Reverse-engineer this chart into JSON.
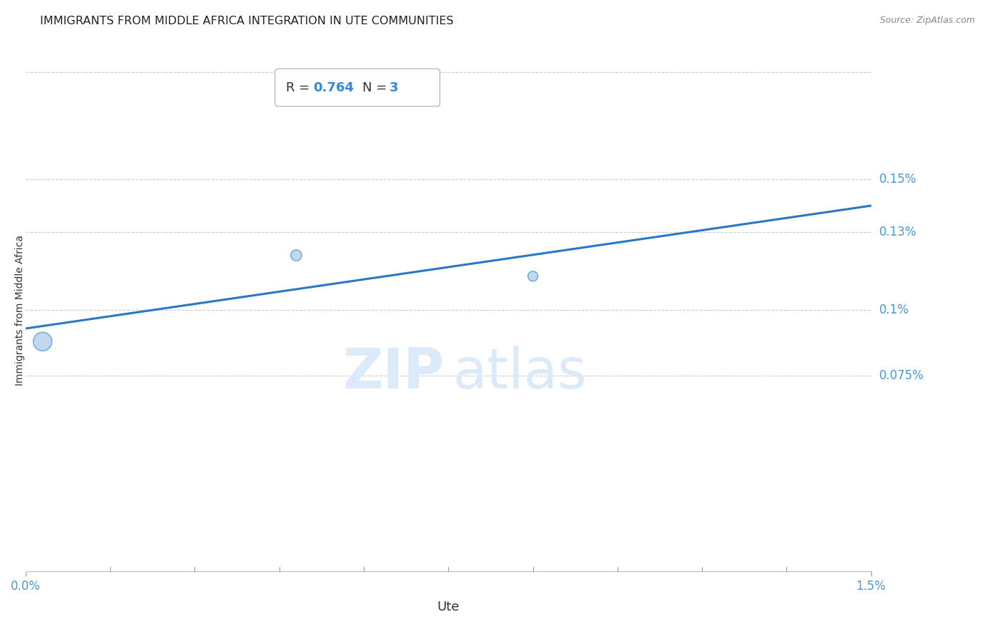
{
  "title": "IMMIGRANTS FROM MIDDLE AFRICA INTEGRATION IN UTE COMMUNITIES",
  "source": "Source: ZipAtlas.com",
  "xlabel": "Ute",
  "ylabel": "Immigrants from Middle Africa",
  "x_min": 0.0,
  "x_max": 0.015,
  "y_min": 0.0,
  "y_max": 0.002,
  "x_tick_labels": [
    "0.0%",
    "1.5%"
  ],
  "y_tick_labels": [
    "0.075%",
    "0.1%",
    "0.13%",
    "0.15%"
  ],
  "y_tick_values": [
    0.00075,
    0.001,
    0.0013,
    0.0015
  ],
  "scatter_x": [
    0.0003,
    0.0048,
    0.009
  ],
  "scatter_y": [
    0.00088,
    0.00121,
    0.00113
  ],
  "scatter_sizes": [
    350,
    120,
    100
  ],
  "scatter_color": "#c0d8f0",
  "scatter_edgecolor": "#7ab0d8",
  "regression_x_start": 0.0,
  "regression_x_end": 0.015,
  "regression_y_start": 0.00093,
  "regression_y_end": 0.0014,
  "regression_color": "#2878c8",
  "regression_linewidth": 2.2,
  "R_value": "0.764",
  "N_value": "3",
  "zip_color": "#daeaf8",
  "atlas_color": "#daeaf8",
  "background_color": "#ffffff",
  "grid_color": "#cccccc",
  "title_fontsize": 11.5,
  "axis_label_fontsize": 10,
  "tick_label_color": "#4499dd",
  "ylabel_color": "#333333",
  "xlabel_color": "#333333"
}
